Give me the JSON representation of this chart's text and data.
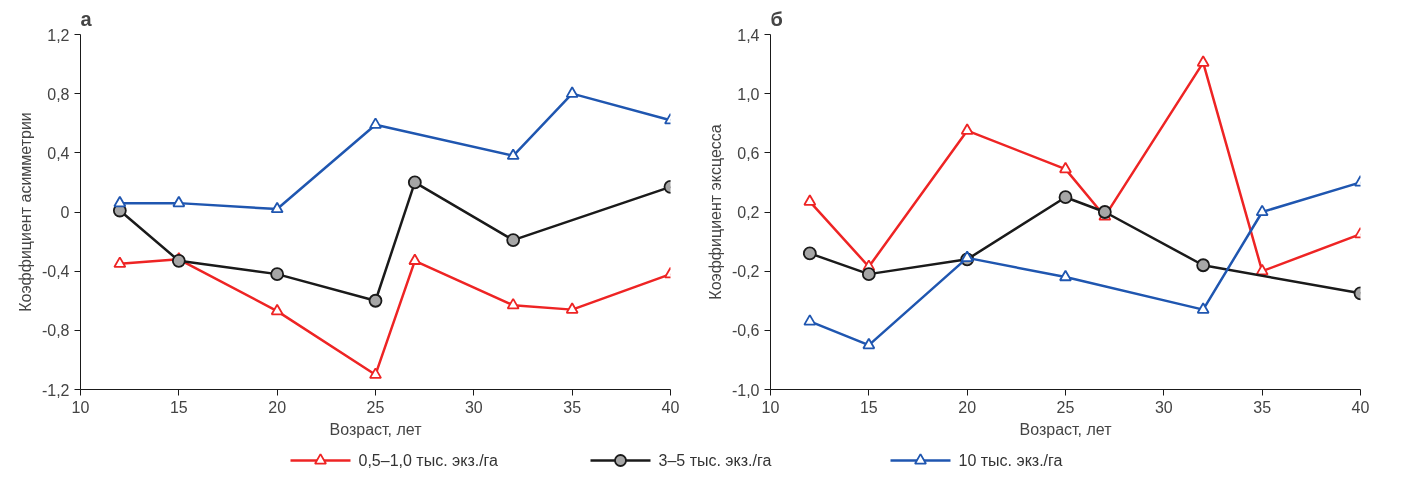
{
  "chart_data": [
    {
      "type": "line",
      "title": "а",
      "xlabel": "Возраст, лет",
      "ylabel": "Коэффициент асимметрии",
      "xlim": [
        10,
        40
      ],
      "xticks": [
        10,
        15,
        20,
        25,
        30,
        35,
        40
      ],
      "ylim": [
        -1.2,
        1.2
      ],
      "yticks": [
        {
          "value": -1.2,
          "label": "-1,2"
        },
        {
          "value": -0.8,
          "label": "-0,8"
        },
        {
          "value": -0.4,
          "label": "-0,4"
        },
        0,
        {
          "value": 0.4,
          "label": "0,4"
        },
        {
          "value": 0.8,
          "label": "0,8"
        },
        {
          "value": 1.2,
          "label": "1,2"
        }
      ],
      "grid": false,
      "legend": "bottom",
      "series": [
        {
          "name": "0,5–1,0 тыс. экз./га",
          "color": "#ee2424",
          "marker": "triangle",
          "x": [
            12,
            15,
            20,
            25,
            27,
            32,
            35,
            40
          ],
          "values": [
            -0.35,
            -0.32,
            -0.67,
            -1.1,
            -0.33,
            -0.63,
            -0.66,
            -0.42
          ]
        },
        {
          "name": "3–5 тыс. экз./га",
          "color": "#1a1a1a",
          "marker": "circle",
          "x": [
            12,
            15,
            20,
            25,
            27,
            32,
            40
          ],
          "values": [
            0.01,
            -0.33,
            -0.42,
            -0.6,
            0.2,
            -0.19,
            0.17
          ]
        },
        {
          "name": "10 тыс. экз./га",
          "color": "#1f56b0",
          "marker": "triangle",
          "x": [
            12,
            15,
            20,
            25,
            32,
            35,
            40
          ],
          "values": [
            0.06,
            0.06,
            0.02,
            0.59,
            0.38,
            0.8,
            0.62
          ]
        }
      ]
    },
    {
      "type": "line",
      "title": "б",
      "xlabel": "Возраст, лет",
      "ylabel": "Коэффициент эксцесса",
      "xlim": [
        10,
        40
      ],
      "xticks": [
        10,
        15,
        20,
        25,
        30,
        35,
        40
      ],
      "ylim": [
        -1.0,
        1.4
      ],
      "yticks": [
        {
          "value": -1.0,
          "label": "-1,0"
        },
        {
          "value": -0.6,
          "label": "-0,6"
        },
        {
          "value": -0.2,
          "label": "-0,2"
        },
        {
          "value": 0.2,
          "label": "0,2"
        },
        {
          "value": 0.6,
          "label": "0,6"
        },
        {
          "value": 1.0,
          "label": "1,0"
        },
        {
          "value": 1.4,
          "label": "1,4"
        }
      ],
      "grid": false,
      "series": [
        {
          "color": "#ee2424",
          "marker": "triangle",
          "x": [
            12,
            15,
            20,
            25,
            27,
            32,
            35,
            40
          ],
          "values": [
            0.27,
            -0.17,
            0.75,
            0.49,
            0.17,
            1.21,
            -0.2,
            0.05
          ]
        },
        {
          "color": "#1a1a1a",
          "marker": "circle",
          "x": [
            12,
            15,
            20,
            25,
            27,
            32,
            40
          ],
          "values": [
            -0.08,
            -0.22,
            -0.12,
            0.3,
            0.2,
            -0.16,
            -0.35
          ]
        },
        {
          "color": "#1f56b0",
          "marker": "triangle",
          "x": [
            12,
            15,
            20,
            25,
            32,
            35,
            40
          ],
          "values": [
            -0.54,
            -0.7,
            -0.11,
            -0.24,
            -0.46,
            0.2,
            0.4
          ]
        }
      ]
    }
  ]
}
